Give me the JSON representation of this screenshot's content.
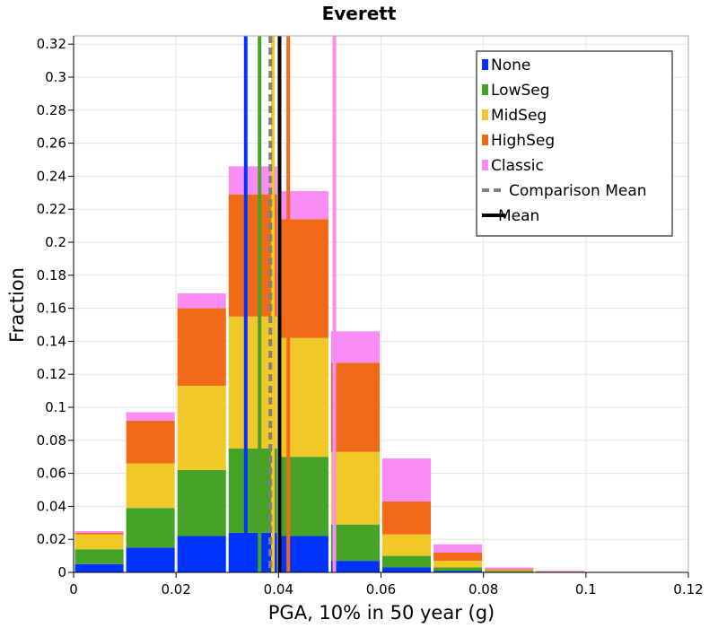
{
  "chart_data": {
    "type": "bar",
    "stacked": true,
    "title": "Everett",
    "xlabel": "PGA, 10% in 50 year (g)",
    "ylabel": "Fraction",
    "xlim": [
      0,
      0.12
    ],
    "ylim": [
      0,
      0.325
    ],
    "x_ticks": [
      0,
      0.02,
      0.04,
      0.06,
      0.08,
      0.1,
      0.12
    ],
    "x_tick_labels": [
      "0",
      "0.02",
      "0.04",
      "0.06",
      "0.08",
      "0.1",
      "0.12"
    ],
    "y_ticks": [
      0,
      0.02,
      0.04,
      0.06,
      0.08,
      0.1,
      0.12,
      0.14,
      0.16,
      0.18,
      0.2,
      0.22,
      0.24,
      0.26,
      0.28,
      0.3,
      0.32
    ],
    "y_tick_labels": [
      "0",
      "0.02",
      "0.04",
      "0.06",
      "0.08",
      "0.1",
      "0.12",
      "0.14",
      "0.16",
      "0.18",
      "0.2",
      "0.22",
      "0.24",
      "0.26",
      "0.28",
      "0.3",
      "0.32"
    ],
    "grid": true,
    "legend_position": "top-right",
    "bin_width": 0.01,
    "bin_starts": [
      0,
      0.01,
      0.02,
      0.03,
      0.04,
      0.05,
      0.06,
      0.07,
      0.08,
      0.09,
      0.1,
      0.11
    ],
    "series": [
      {
        "name": "None",
        "color": "#0033ff",
        "values": [
          0.005,
          0.015,
          0.022,
          0.024,
          0.022,
          0.007,
          0.003,
          0.001,
          0.0003,
          0.0001,
          0.0,
          0.0
        ]
      },
      {
        "name": "LowSeg",
        "color": "#47a228",
        "values": [
          0.009,
          0.024,
          0.04,
          0.051,
          0.048,
          0.022,
          0.007,
          0.002,
          0.0005,
          0.0001,
          0.0,
          0.0
        ]
      },
      {
        "name": "MidSeg",
        "color": "#f0c928",
        "values": [
          0.009,
          0.027,
          0.051,
          0.08,
          0.072,
          0.044,
          0.013,
          0.004,
          0.0005,
          0.0001,
          0.0,
          0.0
        ]
      },
      {
        "name": "HighSeg",
        "color": "#f06a18",
        "values": [
          0.001,
          0.026,
          0.047,
          0.074,
          0.072,
          0.054,
          0.02,
          0.005,
          0.0007,
          0.0002,
          0.0,
          0.0
        ]
      },
      {
        "name": "Classic",
        "color": "#fa8cf5",
        "values": [
          0.001,
          0.005,
          0.009,
          0.017,
          0.017,
          0.019,
          0.026,
          0.005,
          0.001,
          0.0004,
          0.0001,
          0.0001
        ]
      }
    ],
    "mean_lines": [
      {
        "name": "None",
        "x": 0.0336,
        "color": "#0033ff",
        "style": "solid"
      },
      {
        "name": "LowSeg",
        "x": 0.0363,
        "color": "#47a228",
        "style": "solid"
      },
      {
        "name": "MidSeg",
        "x": 0.0389,
        "color": "#f0c928",
        "style": "solid"
      },
      {
        "name": "HighSeg",
        "x": 0.0419,
        "color": "#f06a18",
        "style": "solid"
      },
      {
        "name": "Classic",
        "x": 0.0509,
        "color": "#fa8cf5",
        "style": "solid"
      },
      {
        "name": "Comparison Mean",
        "x": 0.0384,
        "color": "#808080",
        "style": "dashed"
      },
      {
        "name": "Mean",
        "x": 0.0402,
        "color": "#000000",
        "style": "solid"
      }
    ],
    "legend": [
      {
        "label": "None",
        "color": "#0033ff",
        "kind": "box"
      },
      {
        "label": "LowSeg",
        "color": "#47a228",
        "kind": "box"
      },
      {
        "label": "MidSeg",
        "color": "#f0c928",
        "kind": "box"
      },
      {
        "label": "HighSeg",
        "color": "#f06a18",
        "kind": "box"
      },
      {
        "label": "Classic",
        "color": "#fa8cf5",
        "kind": "box"
      },
      {
        "label": "Comparison Mean",
        "color": "#808080",
        "kind": "dashed"
      },
      {
        "label": "Mean",
        "color": "#000000",
        "kind": "line"
      }
    ]
  }
}
